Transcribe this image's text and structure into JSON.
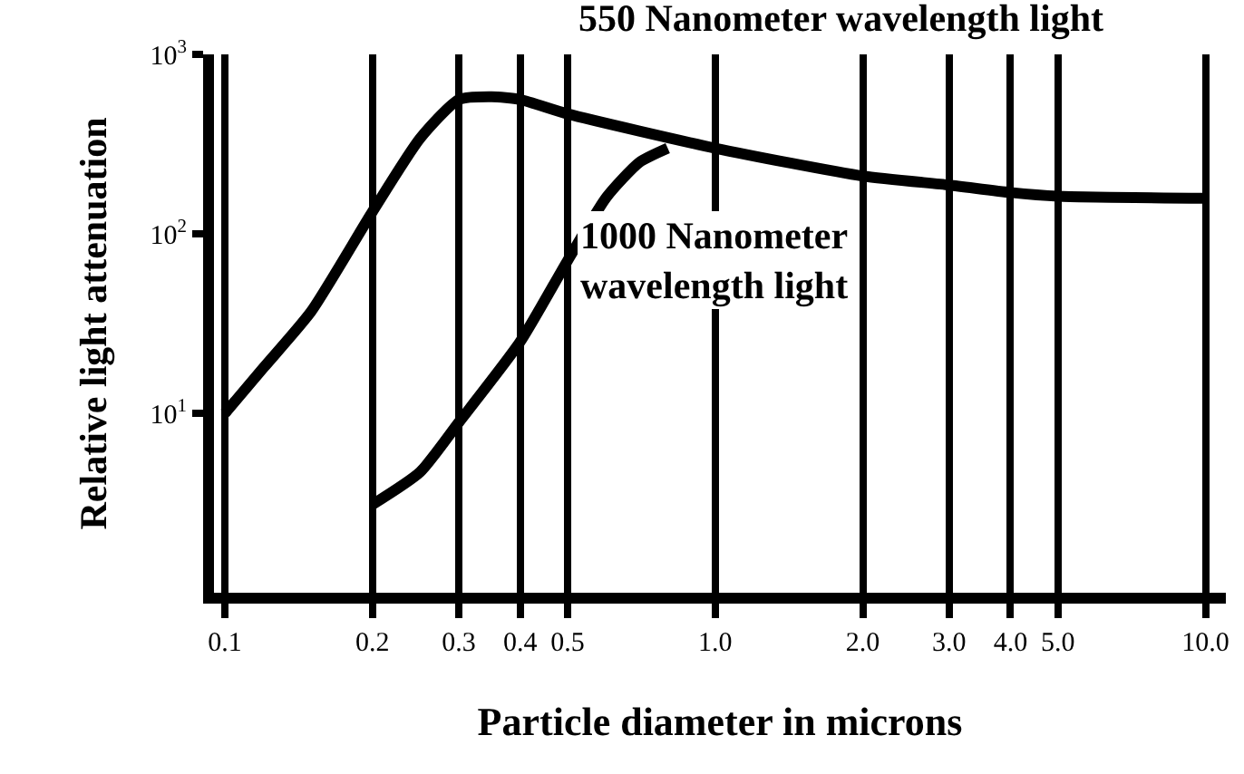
{
  "chart_data": {
    "type": "line",
    "xlabel": "Particle diameter in microns",
    "ylabel": "Relative light attenuation",
    "log": "xy",
    "grid": "x",
    "legend": false,
    "marker": "none",
    "line_style": "solid",
    "xlim": [
      0.095,
      11
    ],
    "ylim": [
      1,
      1000
    ],
    "xticks": [
      0.1,
      0.2,
      0.3,
      0.4,
      0.5,
      {
        "value": 1,
        "label": "1.0"
      },
      {
        "value": 2,
        "label": "2.0"
      },
      {
        "value": 3,
        "label": "3.0"
      },
      {
        "value": 4,
        "label": "4.0"
      },
      {
        "value": 5,
        "label": "5.0"
      },
      {
        "value": 10,
        "label": "10.0"
      }
    ],
    "yticks": [
      {
        "value": 10,
        "label": "10$^{1}$"
      },
      {
        "value": 100,
        "label": "10$^{2}$"
      },
      {
        "value": 1000,
        "label": "10$^{3}$"
      }
    ],
    "series": [
      {
        "name": "550 Nanometer wavelength light",
        "color": "#000000",
        "x": [
          0.1,
          0.12,
          0.15,
          0.2,
          0.25,
          0.3,
          0.35,
          0.4,
          0.5,
          1.0,
          2.0,
          3.0,
          4.0,
          5.0,
          10.0
        ],
        "values": [
          10,
          18,
          37,
          133,
          340,
          560,
          580,
          560,
          466,
          300,
          210,
          187,
          170,
          162,
          158
        ]
      },
      {
        "name": "1000 Nanometer wavelength light",
        "color": "#000000",
        "x": [
          0.2,
          0.25,
          0.3,
          0.4,
          0.5,
          0.6,
          0.7,
          0.8
        ],
        "values": [
          3.1,
          4.7,
          8.9,
          25,
          71,
          160,
          250,
          300
        ]
      }
    ]
  }
}
